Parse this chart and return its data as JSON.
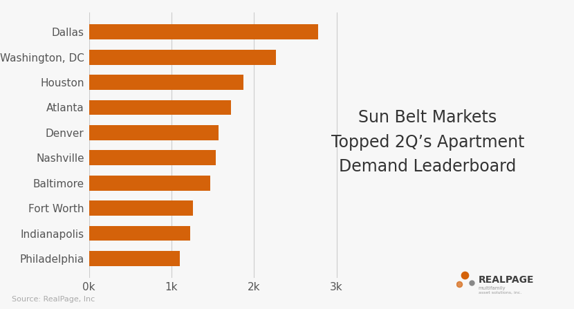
{
  "categories": [
    "Philadelphia",
    "Indianapolis",
    "Fort Worth",
    "Baltimore",
    "Nashville",
    "Denver",
    "Atlanta",
    "Houston",
    "Washington, DC",
    "Dallas"
  ],
  "values": [
    1100,
    1230,
    1260,
    1470,
    1540,
    1570,
    1720,
    1870,
    2270,
    2780
  ],
  "bar_color": "#d4620a",
  "background_color": "#f7f7f7",
  "title_line1": "Sun Belt Markets",
  "title_line2": "Topped 2Q’s Apartment",
  "title_line3": "Demand Leaderboard",
  "title_fontsize": 17,
  "source_text": "Source: RealPage, Inc",
  "xlim": [
    0,
    3200
  ],
  "xticks": [
    0,
    1000,
    2000,
    3000
  ],
  "xticklabels": [
    "0k",
    "1k",
    "2k",
    "3k"
  ],
  "bar_height": 0.6,
  "label_color": "#555555",
  "label_fontsize": 11,
  "tick_fontsize": 11,
  "grid_color": "#cccccc",
  "realpage_color": "#404040",
  "dot_color1": "#d4620a",
  "dot_color2": "#888888"
}
